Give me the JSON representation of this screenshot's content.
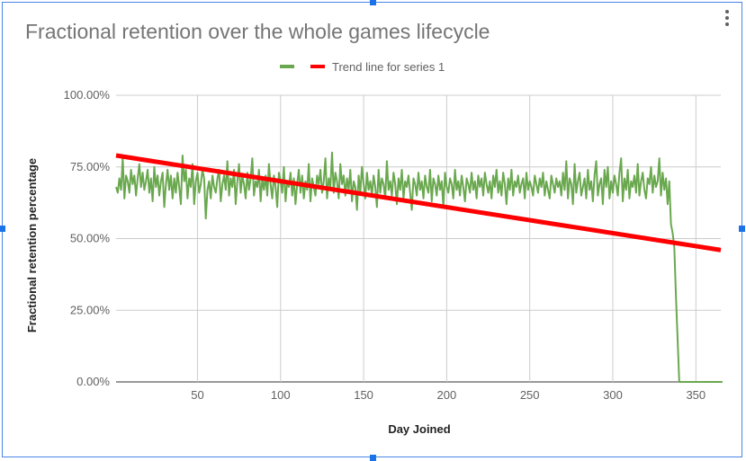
{
  "title": "Fractional retention over the whole games lifecycle",
  "menu_icon": "more-vert-icon",
  "chart_data": {
    "type": "line",
    "title": "Fractional retention over the whole games lifecycle",
    "xlabel": "Day Joined",
    "ylabel": "Fractional retention percentage",
    "xlim": [
      1,
      365
    ],
    "ylim": [
      0,
      1
    ],
    "x_ticks": [
      50,
      100,
      150,
      200,
      250,
      300,
      350
    ],
    "y_ticks": [
      "0.00%",
      "25.00%",
      "50.00%",
      "75.00%",
      "100.00%"
    ],
    "grid": true,
    "legend_position": "top",
    "series": [
      {
        "name": "",
        "color": "#6aa84f",
        "x_start": 1,
        "values": [
          0.68,
          0.66,
          0.71,
          0.67,
          0.78,
          0.64,
          0.72,
          0.7,
          0.66,
          0.74,
          0.69,
          0.72,
          0.65,
          0.71,
          0.76,
          0.68,
          0.73,
          0.67,
          0.7,
          0.74,
          0.66,
          0.71,
          0.63,
          0.75,
          0.68,
          0.72,
          0.65,
          0.7,
          0.73,
          0.61,
          0.69,
          0.74,
          0.67,
          0.72,
          0.64,
          0.71,
          0.66,
          0.73,
          0.68,
          0.62,
          0.79,
          0.7,
          0.74,
          0.64,
          0.71,
          0.68,
          0.76,
          0.62,
          0.7,
          0.73,
          0.66,
          0.69,
          0.74,
          0.71,
          0.57,
          0.67,
          0.7,
          0.64,
          0.72,
          0.68,
          0.66,
          0.71,
          0.74,
          0.63,
          0.69,
          0.72,
          0.67,
          0.77,
          0.65,
          0.71,
          0.68,
          0.74,
          0.62,
          0.7,
          0.76,
          0.66,
          0.72,
          0.69,
          0.64,
          0.73,
          0.67,
          0.71,
          0.78,
          0.65,
          0.7,
          0.68,
          0.74,
          0.63,
          0.71,
          0.67,
          0.72,
          0.65,
          0.76,
          0.69,
          0.64,
          0.72,
          0.68,
          0.61,
          0.73,
          0.7,
          0.66,
          0.75,
          0.63,
          0.7,
          0.68,
          0.73,
          0.65,
          0.71,
          0.62,
          0.69,
          0.74,
          0.66,
          0.72,
          0.64,
          0.7,
          0.67,
          0.76,
          0.63,
          0.71,
          0.68,
          0.65,
          0.72,
          0.69,
          0.74,
          0.66,
          0.7,
          0.78,
          0.64,
          0.71,
          0.68,
          0.8,
          0.66,
          0.73,
          0.7,
          0.64,
          0.76,
          0.69,
          0.72,
          0.65,
          0.71,
          0.67,
          0.74,
          0.63,
          0.7,
          0.68,
          0.6,
          0.72,
          0.66,
          0.75,
          0.69,
          0.64,
          0.73,
          0.67,
          0.7,
          0.65,
          0.72,
          0.68,
          0.61,
          0.74,
          0.66,
          0.71,
          0.69,
          0.64,
          0.77,
          0.67,
          0.7,
          0.65,
          0.73,
          0.69,
          0.62,
          0.71,
          0.67,
          0.74,
          0.64,
          0.7,
          0.68,
          0.72,
          0.66,
          0.6,
          0.71,
          0.69,
          0.65,
          0.73,
          0.67,
          0.7,
          0.64,
          0.72,
          0.68,
          0.66,
          0.74,
          0.63,
          0.71,
          0.69,
          0.65,
          0.72,
          0.67,
          0.7,
          0.61,
          0.73,
          0.68,
          0.66,
          0.71,
          0.69,
          0.64,
          0.74,
          0.67,
          0.7,
          0.65,
          0.72,
          0.68,
          0.63,
          0.71,
          0.69,
          0.66,
          0.73,
          0.67,
          0.7,
          0.64,
          0.72,
          0.68,
          0.71,
          0.65,
          0.73,
          0.69,
          0.66,
          0.7,
          0.64,
          0.72,
          0.68,
          0.74,
          0.66,
          0.7,
          0.65,
          0.73,
          0.69,
          0.62,
          0.71,
          0.67,
          0.74,
          0.65,
          0.7,
          0.68,
          0.72,
          0.66,
          0.69,
          0.71,
          0.64,
          0.73,
          0.67,
          0.7,
          0.68,
          0.65,
          0.72,
          0.69,
          0.66,
          0.71,
          0.68,
          0.73,
          0.65,
          0.7,
          0.67,
          0.64,
          0.72,
          0.69,
          0.66,
          0.71,
          0.68,
          0.7,
          0.65,
          0.73,
          0.67,
          0.77,
          0.64,
          0.71,
          0.69,
          0.62,
          0.76,
          0.66,
          0.7,
          0.73,
          0.65,
          0.68,
          0.71,
          0.64,
          0.74,
          0.67,
          0.7,
          0.63,
          0.72,
          0.77,
          0.65,
          0.69,
          0.71,
          0.62,
          0.74,
          0.68,
          0.75,
          0.64,
          0.7,
          0.66,
          0.72,
          0.69,
          0.65,
          0.73,
          0.78,
          0.63,
          0.71,
          0.67,
          0.74,
          0.64,
          0.7,
          0.68,
          0.72,
          0.66,
          0.76,
          0.65,
          0.7,
          0.73,
          0.67,
          0.64,
          0.71,
          0.69,
          0.75,
          0.66,
          0.72,
          0.68,
          0.7,
          0.78,
          0.65,
          0.73,
          0.67,
          0.71,
          0.62,
          0.7,
          0.55,
          0.52,
          0.47,
          0.3,
          0.15,
          0.0,
          0.0,
          0.0,
          0.0,
          0.0,
          0.0,
          0.0,
          0.0,
          0.0,
          0.0,
          0.0,
          0.0,
          0.0,
          0.0,
          0.0,
          0.0,
          0.0,
          0.0,
          0.0,
          0.0,
          0.0,
          0.0,
          0.0,
          0.0,
          0.0,
          0.0,
          0.0
        ]
      },
      {
        "name": "Trend line for series 1",
        "type": "linear-trend",
        "color": "#ff0000",
        "x": [
          1,
          365
        ],
        "values": [
          0.79,
          0.46
        ]
      }
    ]
  }
}
